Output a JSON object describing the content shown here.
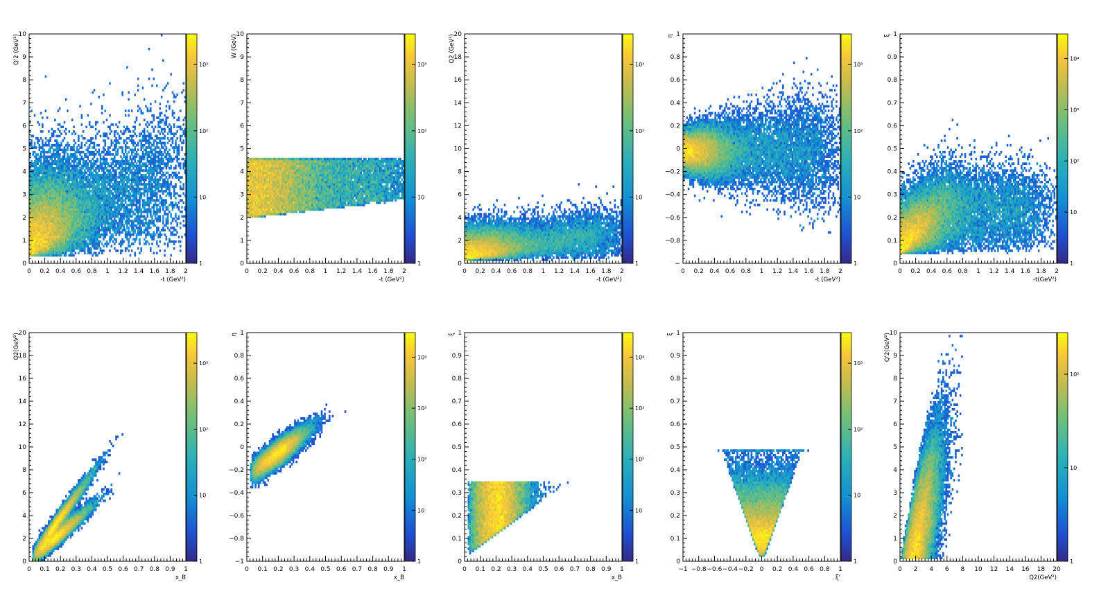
{
  "chart_data": [
    {
      "type": "heatmap",
      "panel": "pad-1",
      "xlabel": "-t (GeV²)",
      "ylabel": "Q'2 (GeV²)",
      "xlim": [
        0,
        2
      ],
      "ylim": [
        0,
        10
      ],
      "xticks": [
        "0",
        "0.2",
        "0.4",
        "0.6",
        "0.8",
        "1",
        "1.2",
        "1.4",
        "1.6",
        "1.8",
        "2"
      ],
      "yticks": [
        "0",
        "1",
        "2",
        "3",
        "4",
        "5",
        "6",
        "7",
        "8",
        "9",
        "10"
      ],
      "colorbar": {
        "scale": "log",
        "labels": [
          "1",
          "10",
          "10²",
          "10³"
        ]
      }
    },
    {
      "type": "heatmap",
      "panel": "pad-2",
      "xlabel": "-t (GeV²)",
      "ylabel": "W (GeV)",
      "xlim": [
        0,
        2
      ],
      "ylim": [
        0,
        10
      ],
      "xticks": [
        "0",
        "0.2",
        "0.4",
        "0.6",
        "0.8",
        "1",
        "1.2",
        "1.4",
        "1.6",
        "1.8",
        "2"
      ],
      "yticks": [
        "0",
        "1",
        "2",
        "3",
        "4",
        "5",
        "6",
        "7",
        "8",
        "9",
        "10"
      ],
      "colorbar": {
        "scale": "log",
        "labels": [
          "1",
          "10",
          "10²",
          "10³"
        ]
      }
    },
    {
      "type": "heatmap",
      "panel": "pad-3",
      "xlabel": "-t (GeV²)",
      "ylabel": "Q2 (GeV²)",
      "xlim": [
        0,
        2
      ],
      "ylim": [
        0,
        20
      ],
      "xticks": [
        "0",
        "0.2",
        "0.4",
        "0.6",
        "0.8",
        "1",
        "1.2",
        "1.4",
        "1.6",
        "1.8",
        "2"
      ],
      "yticks": [
        "0",
        "2",
        "4",
        "6",
        "8",
        "10",
        "12",
        "14",
        "16",
        "18",
        "20"
      ],
      "colorbar": {
        "scale": "log",
        "labels": [
          "1",
          "10",
          "10²",
          "10³"
        ]
      }
    },
    {
      "type": "heatmap",
      "panel": "pad-4",
      "xlabel": "-t (GeV²)",
      "ylabel": "η",
      "xlim": [
        0,
        2
      ],
      "ylim": [
        -1,
        1
      ],
      "xticks": [
        "0",
        "0.2",
        "0.4",
        "0.6",
        "0.8",
        "1",
        "1.2",
        "1.4",
        "1.6",
        "1.8",
        "2"
      ],
      "yticks": [
        "−",
        "−0.8",
        "−0.6",
        "−0.4",
        "−0.2",
        "0",
        "0.2",
        "0.4",
        "0.6",
        "0.8",
        "1"
      ],
      "colorbar": {
        "scale": "log",
        "labels": [
          "1",
          "10",
          "10²",
          "10³"
        ]
      }
    },
    {
      "type": "heatmap",
      "panel": "pad-5",
      "xlabel": "-t(GeV²)",
      "ylabel": "ξ",
      "xlim": [
        0,
        2
      ],
      "ylim": [
        0,
        1
      ],
      "xticks": [
        "0",
        "0.2",
        "0.4",
        "0.6",
        "0.8",
        "1",
        "1.2",
        "1.4",
        "1.6",
        "1.8",
        "2"
      ],
      "yticks": [
        "0",
        "0.1",
        "0.2",
        "0.3",
        "0.4",
        "0.5",
        "0.6",
        "0.7",
        "0.8",
        "0.9",
        "1"
      ],
      "colorbar": {
        "scale": "log",
        "labels": [
          "1",
          "10",
          "10²",
          "10³",
          "10⁴"
        ]
      }
    },
    {
      "type": "heatmap",
      "panel": "pad-6",
      "xlabel": "x_B",
      "ylabel": "Q2(GeV²)",
      "xlim": [
        0,
        1
      ],
      "ylim": [
        0,
        20
      ],
      "xticks": [
        "0",
        "0.1",
        "0.2",
        "0.3",
        "0.4",
        "0.5",
        "0.6",
        "0.7",
        "0.8",
        "0.9",
        "1"
      ],
      "yticks": [
        "0",
        "2",
        "4",
        "6",
        "8",
        "10",
        "12",
        "14",
        "16",
        "18",
        "20"
      ],
      "colorbar": {
        "scale": "log",
        "labels": [
          "1",
          "10",
          "10²",
          "10³"
        ]
      }
    },
    {
      "type": "heatmap",
      "panel": "pad-7",
      "xlabel": "x_B",
      "ylabel": "η",
      "xlim": [
        0,
        1
      ],
      "ylim": [
        -1,
        1
      ],
      "xticks": [
        "0",
        "0.1",
        "0.2",
        "0.3",
        "0.4",
        "0.5",
        "0.6",
        "0.7",
        "0.8",
        "0.9",
        "1"
      ],
      "yticks": [
        "−1",
        "−0.8",
        "−0.6",
        "−0.4",
        "−0.2",
        "0",
        "0.2",
        "0.4",
        "0.6",
        "0.8",
        "1"
      ],
      "colorbar": {
        "scale": "log",
        "labels": [
          "1",
          "10",
          "10²",
          "10³",
          "10⁴"
        ]
      }
    },
    {
      "type": "heatmap",
      "panel": "pad-8",
      "xlabel": "x_B",
      "ylabel": "ξ",
      "xlim": [
        0,
        1
      ],
      "ylim": [
        0,
        1
      ],
      "xticks": [
        "0",
        "0.1",
        "0.2",
        "0.3",
        "0.4",
        "0.5",
        "0.6",
        "0.7",
        "0.8",
        "0.9",
        "1"
      ],
      "yticks": [
        "0",
        "0.1",
        "0.2",
        "0.3",
        "0.4",
        "0.5",
        "0.6",
        "0.7",
        "0.8",
        "0.9",
        "1"
      ],
      "colorbar": {
        "scale": "log",
        "labels": [
          "1",
          "10",
          "10²",
          "10³",
          "10⁴"
        ]
      }
    },
    {
      "type": "heatmap",
      "panel": "pad-9",
      "xlabel": "ξ'",
      "ylabel": "ξ",
      "xlim": [
        -1,
        1
      ],
      "ylim": [
        0,
        1
      ],
      "xticks": [
        "−1",
        "−0.8",
        "−0.6",
        "−0.4",
        "−0.2",
        "0",
        "0.2",
        "0.4",
        "0.6",
        "0.8",
        "1"
      ],
      "yticks": [
        "0",
        "0.1",
        "0.2",
        "0.3",
        "0.4",
        "0.5",
        "0.6",
        "0.7",
        "0.8",
        "0.9",
        "1"
      ],
      "colorbar": {
        "scale": "log",
        "labels": [
          "1",
          "10",
          "10²",
          "10³"
        ]
      }
    },
    {
      "type": "heatmap",
      "panel": "pad-10",
      "xlabel": "Q2(GeV²)",
      "ylabel": "Q'2(GeV²)",
      "xlim": [
        0,
        20
      ],
      "ylim": [
        0,
        10
      ],
      "xticks": [
        "0",
        "2",
        "4",
        "6",
        "8",
        "10",
        "12",
        "14",
        "16",
        "18",
        "20"
      ],
      "yticks": [
        "0",
        "1",
        "2",
        "3",
        "4",
        "5",
        "6",
        "7",
        "8",
        "9",
        "10"
      ],
      "colorbar": {
        "scale": "log",
        "labels": [
          "1",
          "10",
          "10²"
        ]
      }
    }
  ]
}
